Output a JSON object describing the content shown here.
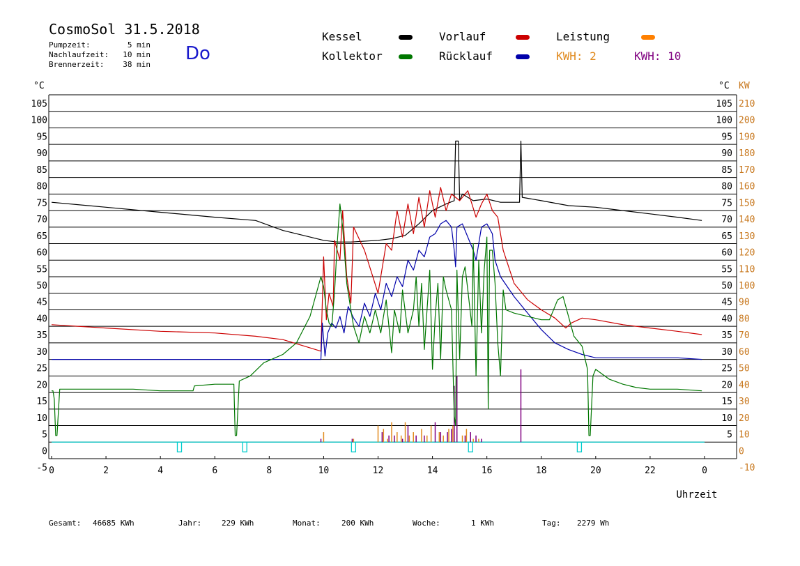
{
  "header": {
    "title": "CosmoSol 31.5.2018",
    "day": "Do",
    "info": [
      {
        "label": "Pumpzeit:",
        "value": "5 min"
      },
      {
        "label": "Nachlaufzeit:",
        "value": "10 min"
      },
      {
        "label": "Brennerzeit:",
        "value": "38 min"
      }
    ]
  },
  "legend": {
    "kessel": "Kessel",
    "vorlauf": "Vorlauf",
    "leistung": "Leistung",
    "kollektor": "Kollektor",
    "ruecklauf": "Rücklauf",
    "kwh2": "KWH: 2",
    "kwh10": "KWH: 10"
  },
  "colors": {
    "kessel": "#000000",
    "vorlauf": "#cc0000",
    "leistung": "#ff8000",
    "kollektor": "#007700",
    "ruecklauf": "#0000aa",
    "kwh2": "#e08a1e",
    "kwh10": "#800080",
    "pump": "#00cccc",
    "grid": "#000000"
  },
  "footer": [
    {
      "label": "Gesamt:",
      "value": "46685 KWh"
    },
    {
      "label": "Jahr:",
      "value": "229 KWh"
    },
    {
      "label": "Monat:",
      "value": "200 KWh"
    },
    {
      "label": "Woche:",
      "value": "1 KWh"
    },
    {
      "label": "Tag:",
      "value": "2279 Wh"
    }
  ],
  "chart_data": {
    "type": "line",
    "xlabel": "Uhrzeit",
    "ylabel_left": "°C",
    "ylabel_right_1": "°C",
    "ylabel_right_2": "KW",
    "xlim": [
      0,
      24
    ],
    "ylim": [
      -5,
      105
    ],
    "x_ticks": [
      "0",
      "2",
      "4",
      "6",
      "8",
      "10",
      "12",
      "14",
      "16",
      "18",
      "20",
      "22",
      "0"
    ],
    "y_ticks_left": [
      "105",
      "100",
      "95",
      "90",
      "85",
      "80",
      "75",
      "70",
      "65",
      "60",
      "55",
      "50",
      "45",
      "40",
      "35",
      "30",
      "25",
      "20",
      "15",
      "10",
      "5",
      "0",
      "-5"
    ],
    "y_ticks_right_temp": [
      "105",
      "100",
      "95",
      "90",
      "85",
      "80",
      "75",
      "70",
      "65",
      "60",
      "55",
      "50",
      "45",
      "40",
      "35",
      "30",
      "25",
      "20",
      "15",
      "10",
      "5"
    ],
    "y_ticks_right_kw": [
      "210",
      "200",
      "190",
      "180",
      "170",
      "160",
      "150",
      "140",
      "130",
      "120",
      "110",
      "100",
      "90",
      "80",
      "70",
      "60",
      "50",
      "40",
      "30",
      "20",
      "10",
      "0",
      "-10"
    ],
    "series": [
      {
        "name": "Kessel",
        "color": "#000000",
        "points": [
          [
            0,
            72.5
          ],
          [
            2,
            71
          ],
          [
            4,
            69.5
          ],
          [
            6,
            68
          ],
          [
            7.5,
            67
          ],
          [
            8.5,
            64
          ],
          [
            9.5,
            62
          ],
          [
            10,
            61
          ],
          [
            10.5,
            60.5
          ],
          [
            11,
            60.5
          ],
          [
            12,
            61
          ],
          [
            12.5,
            61.5
          ],
          [
            13,
            62.5
          ],
          [
            13.5,
            66
          ],
          [
            14,
            70
          ],
          [
            14.5,
            72
          ],
          [
            14.8,
            73
          ],
          [
            14.85,
            91
          ],
          [
            14.95,
            91
          ],
          [
            15,
            73
          ],
          [
            15.1,
            75
          ],
          [
            15.3,
            74
          ],
          [
            15.5,
            73
          ],
          [
            16,
            73.5
          ],
          [
            16.5,
            72.5
          ],
          [
            17,
            72.5
          ],
          [
            17.2,
            72.5
          ],
          [
            17.25,
            91
          ],
          [
            17.3,
            74
          ],
          [
            18,
            73
          ],
          [
            19,
            71.5
          ],
          [
            20,
            71
          ],
          [
            21,
            70
          ],
          [
            22,
            69
          ],
          [
            23,
            68
          ],
          [
            23.9,
            67
          ]
        ]
      },
      {
        "name": "Vorlauf",
        "color": "#cc0000",
        "points": [
          [
            0,
            35.5
          ],
          [
            2,
            34.5
          ],
          [
            4,
            33.5
          ],
          [
            6,
            33
          ],
          [
            7.5,
            32
          ],
          [
            8.5,
            31
          ],
          [
            9.3,
            29
          ],
          [
            9.9,
            27.5
          ],
          [
            10,
            56
          ],
          [
            10.1,
            37
          ],
          [
            10.2,
            45
          ],
          [
            10.35,
            41
          ],
          [
            10.4,
            61
          ],
          [
            10.6,
            55
          ],
          [
            10.7,
            70
          ],
          [
            10.85,
            50
          ],
          [
            11,
            42
          ],
          [
            11.1,
            65
          ],
          [
            11.5,
            58
          ],
          [
            12,
            45
          ],
          [
            12.3,
            60
          ],
          [
            12.5,
            58
          ],
          [
            12.7,
            70
          ],
          [
            12.9,
            62
          ],
          [
            13.1,
            72
          ],
          [
            13.3,
            63
          ],
          [
            13.5,
            74
          ],
          [
            13.7,
            65
          ],
          [
            13.9,
            76
          ],
          [
            14.1,
            68
          ],
          [
            14.3,
            77
          ],
          [
            14.5,
            70
          ],
          [
            14.7,
            75
          ],
          [
            15,
            73
          ],
          [
            15.3,
            76
          ],
          [
            15.6,
            68
          ],
          [
            15.8,
            72
          ],
          [
            16,
            75
          ],
          [
            16.2,
            70
          ],
          [
            16.4,
            68
          ],
          [
            16.6,
            58
          ],
          [
            17,
            48
          ],
          [
            17.5,
            43
          ],
          [
            18,
            40
          ],
          [
            18.5,
            37.5
          ],
          [
            18.9,
            34.5
          ],
          [
            19.1,
            36
          ],
          [
            19.5,
            37.5
          ],
          [
            20,
            37
          ],
          [
            21,
            35.5
          ],
          [
            22,
            34.5
          ],
          [
            23,
            33.5
          ],
          [
            23.9,
            32.5
          ]
        ]
      },
      {
        "name": "Rücklauf",
        "color": "#0000aa",
        "points": [
          [
            0,
            25
          ],
          [
            2,
            25
          ],
          [
            4,
            25
          ],
          [
            6,
            25
          ],
          [
            8,
            25
          ],
          [
            9.5,
            25
          ],
          [
            9.9,
            25
          ],
          [
            9.95,
            36
          ],
          [
            10.05,
            26
          ],
          [
            10.15,
            33
          ],
          [
            10.3,
            36
          ],
          [
            10.45,
            34.5
          ],
          [
            10.6,
            38
          ],
          [
            10.75,
            33
          ],
          [
            10.9,
            41
          ],
          [
            11.1,
            37.5
          ],
          [
            11.3,
            35
          ],
          [
            11.5,
            42
          ],
          [
            11.7,
            38
          ],
          [
            11.9,
            45
          ],
          [
            12.1,
            40
          ],
          [
            12.3,
            48
          ],
          [
            12.5,
            44
          ],
          [
            12.7,
            50
          ],
          [
            12.9,
            47
          ],
          [
            13.1,
            55
          ],
          [
            13.3,
            52
          ],
          [
            13.5,
            58
          ],
          [
            13.7,
            56
          ],
          [
            13.9,
            62
          ],
          [
            14.1,
            63
          ],
          [
            14.3,
            66
          ],
          [
            14.5,
            67
          ],
          [
            14.7,
            65
          ],
          [
            14.8,
            58
          ],
          [
            14.85,
            53
          ],
          [
            14.9,
            65
          ],
          [
            15.1,
            66
          ],
          [
            15.3,
            62
          ],
          [
            15.5,
            58
          ],
          [
            15.6,
            55
          ],
          [
            15.8,
            65
          ],
          [
            16,
            66
          ],
          [
            16.2,
            63
          ],
          [
            16.3,
            55
          ],
          [
            16.5,
            50
          ],
          [
            17,
            44
          ],
          [
            17.5,
            39
          ],
          [
            18,
            34
          ],
          [
            18.5,
            30
          ],
          [
            19,
            28
          ],
          [
            19.5,
            26.5
          ],
          [
            20,
            25.5
          ],
          [
            21,
            25.5
          ],
          [
            22,
            25.5
          ],
          [
            23,
            25.5
          ],
          [
            23.9,
            25
          ]
        ]
      },
      {
        "name": "Kollektor",
        "color": "#007700",
        "points": [
          [
            0,
            15.5
          ],
          [
            0.05,
            15.5
          ],
          [
            0.1,
            13
          ],
          [
            0.15,
            2
          ],
          [
            0.2,
            2
          ],
          [
            0.3,
            16
          ],
          [
            2,
            16
          ],
          [
            3,
            16
          ],
          [
            4,
            15.5
          ],
          [
            5.2,
            15.5
          ],
          [
            5.25,
            17
          ],
          [
            6,
            17.5
          ],
          [
            6.7,
            17.5
          ],
          [
            6.75,
            2
          ],
          [
            6.8,
            2
          ],
          [
            6.9,
            18.5
          ],
          [
            7.3,
            20
          ],
          [
            7.8,
            24
          ],
          [
            8.5,
            26.5
          ],
          [
            9,
            30
          ],
          [
            9.5,
            38
          ],
          [
            9.9,
            50
          ],
          [
            10,
            47
          ],
          [
            10.1,
            40
          ],
          [
            10.2,
            36
          ],
          [
            10.3,
            35
          ],
          [
            10.4,
            45
          ],
          [
            10.5,
            60
          ],
          [
            10.6,
            72
          ],
          [
            10.7,
            65
          ],
          [
            10.85,
            48
          ],
          [
            11,
            40
          ],
          [
            11.1,
            35
          ],
          [
            11.3,
            30
          ],
          [
            11.5,
            38
          ],
          [
            11.7,
            33
          ],
          [
            11.9,
            40
          ],
          [
            12.1,
            33
          ],
          [
            12.3,
            43
          ],
          [
            12.5,
            27
          ],
          [
            12.6,
            40
          ],
          [
            12.8,
            33
          ],
          [
            12.9,
            46
          ],
          [
            13.1,
            33
          ],
          [
            13.3,
            40
          ],
          [
            13.4,
            50
          ],
          [
            13.5,
            35
          ],
          [
            13.6,
            48
          ],
          [
            13.7,
            28
          ],
          [
            13.9,
            52
          ],
          [
            14,
            22
          ],
          [
            14.1,
            38
          ],
          [
            14.2,
            48
          ],
          [
            14.3,
            25
          ],
          [
            14.4,
            50
          ],
          [
            14.5,
            46
          ],
          [
            14.7,
            40
          ],
          [
            14.8,
            8
          ],
          [
            14.85,
            5
          ],
          [
            14.9,
            52
          ],
          [
            15,
            25
          ],
          [
            15.1,
            50
          ],
          [
            15.2,
            53
          ],
          [
            15.3,
            46
          ],
          [
            15.45,
            35
          ],
          [
            15.5,
            60
          ],
          [
            15.6,
            20
          ],
          [
            15.7,
            55
          ],
          [
            15.8,
            33
          ],
          [
            15.9,
            52
          ],
          [
            16,
            62
          ],
          [
            16.05,
            10
          ],
          [
            16.1,
            58
          ],
          [
            16.2,
            58
          ],
          [
            16.3,
            48
          ],
          [
            16.4,
            30
          ],
          [
            16.5,
            20
          ],
          [
            16.6,
            46
          ],
          [
            16.7,
            40
          ],
          [
            17,
            39
          ],
          [
            17.5,
            38
          ],
          [
            18,
            37
          ],
          [
            18.3,
            37
          ],
          [
            18.6,
            43
          ],
          [
            18.8,
            44
          ],
          [
            19,
            38
          ],
          [
            19.2,
            32
          ],
          [
            19.5,
            29
          ],
          [
            19.7,
            22
          ],
          [
            19.75,
            2
          ],
          [
            19.8,
            2
          ],
          [
            19.9,
            20
          ],
          [
            20,
            22
          ],
          [
            20.5,
            19
          ],
          [
            21,
            17.5
          ],
          [
            21.5,
            16.5
          ],
          [
            22,
            16
          ],
          [
            23,
            16
          ],
          [
            23.9,
            15.5
          ]
        ]
      }
    ],
    "bars": [
      {
        "name": "KWH: 2",
        "color": "#e08a1e",
        "x": [
          10.0,
          11.1,
          12.0,
          12.2,
          12.35,
          12.5,
          12.7,
          12.85,
          13.0,
          13.15,
          13.3,
          13.6,
          13.8,
          13.95,
          14.25,
          14.4,
          14.6,
          14.75,
          14.9,
          15.1,
          15.25,
          15.5,
          15.7
        ],
        "values": [
          3,
          1,
          5,
          4,
          1,
          6,
          3,
          2,
          6,
          2,
          3,
          4,
          2,
          5,
          3,
          2,
          4,
          5,
          3,
          2,
          4,
          1,
          1
        ]
      },
      {
        "name": "KWH: 10",
        "color": "#800080",
        "x": [
          9.9,
          11.05,
          12.15,
          12.4,
          12.6,
          12.9,
          13.1,
          13.4,
          13.7,
          14.1,
          14.3,
          14.55,
          14.7,
          14.8,
          14.9,
          15.2,
          15.4,
          15.6,
          15.8,
          17.25
        ],
        "values": [
          1,
          1,
          3,
          2,
          2,
          1,
          5,
          2,
          2,
          6,
          3,
          3,
          4,
          17,
          20,
          2,
          3,
          2,
          1,
          22
        ]
      }
    ],
    "pump_markers": [
      4.7,
      7.1,
      11.1,
      15.4,
      19.4
    ]
  }
}
